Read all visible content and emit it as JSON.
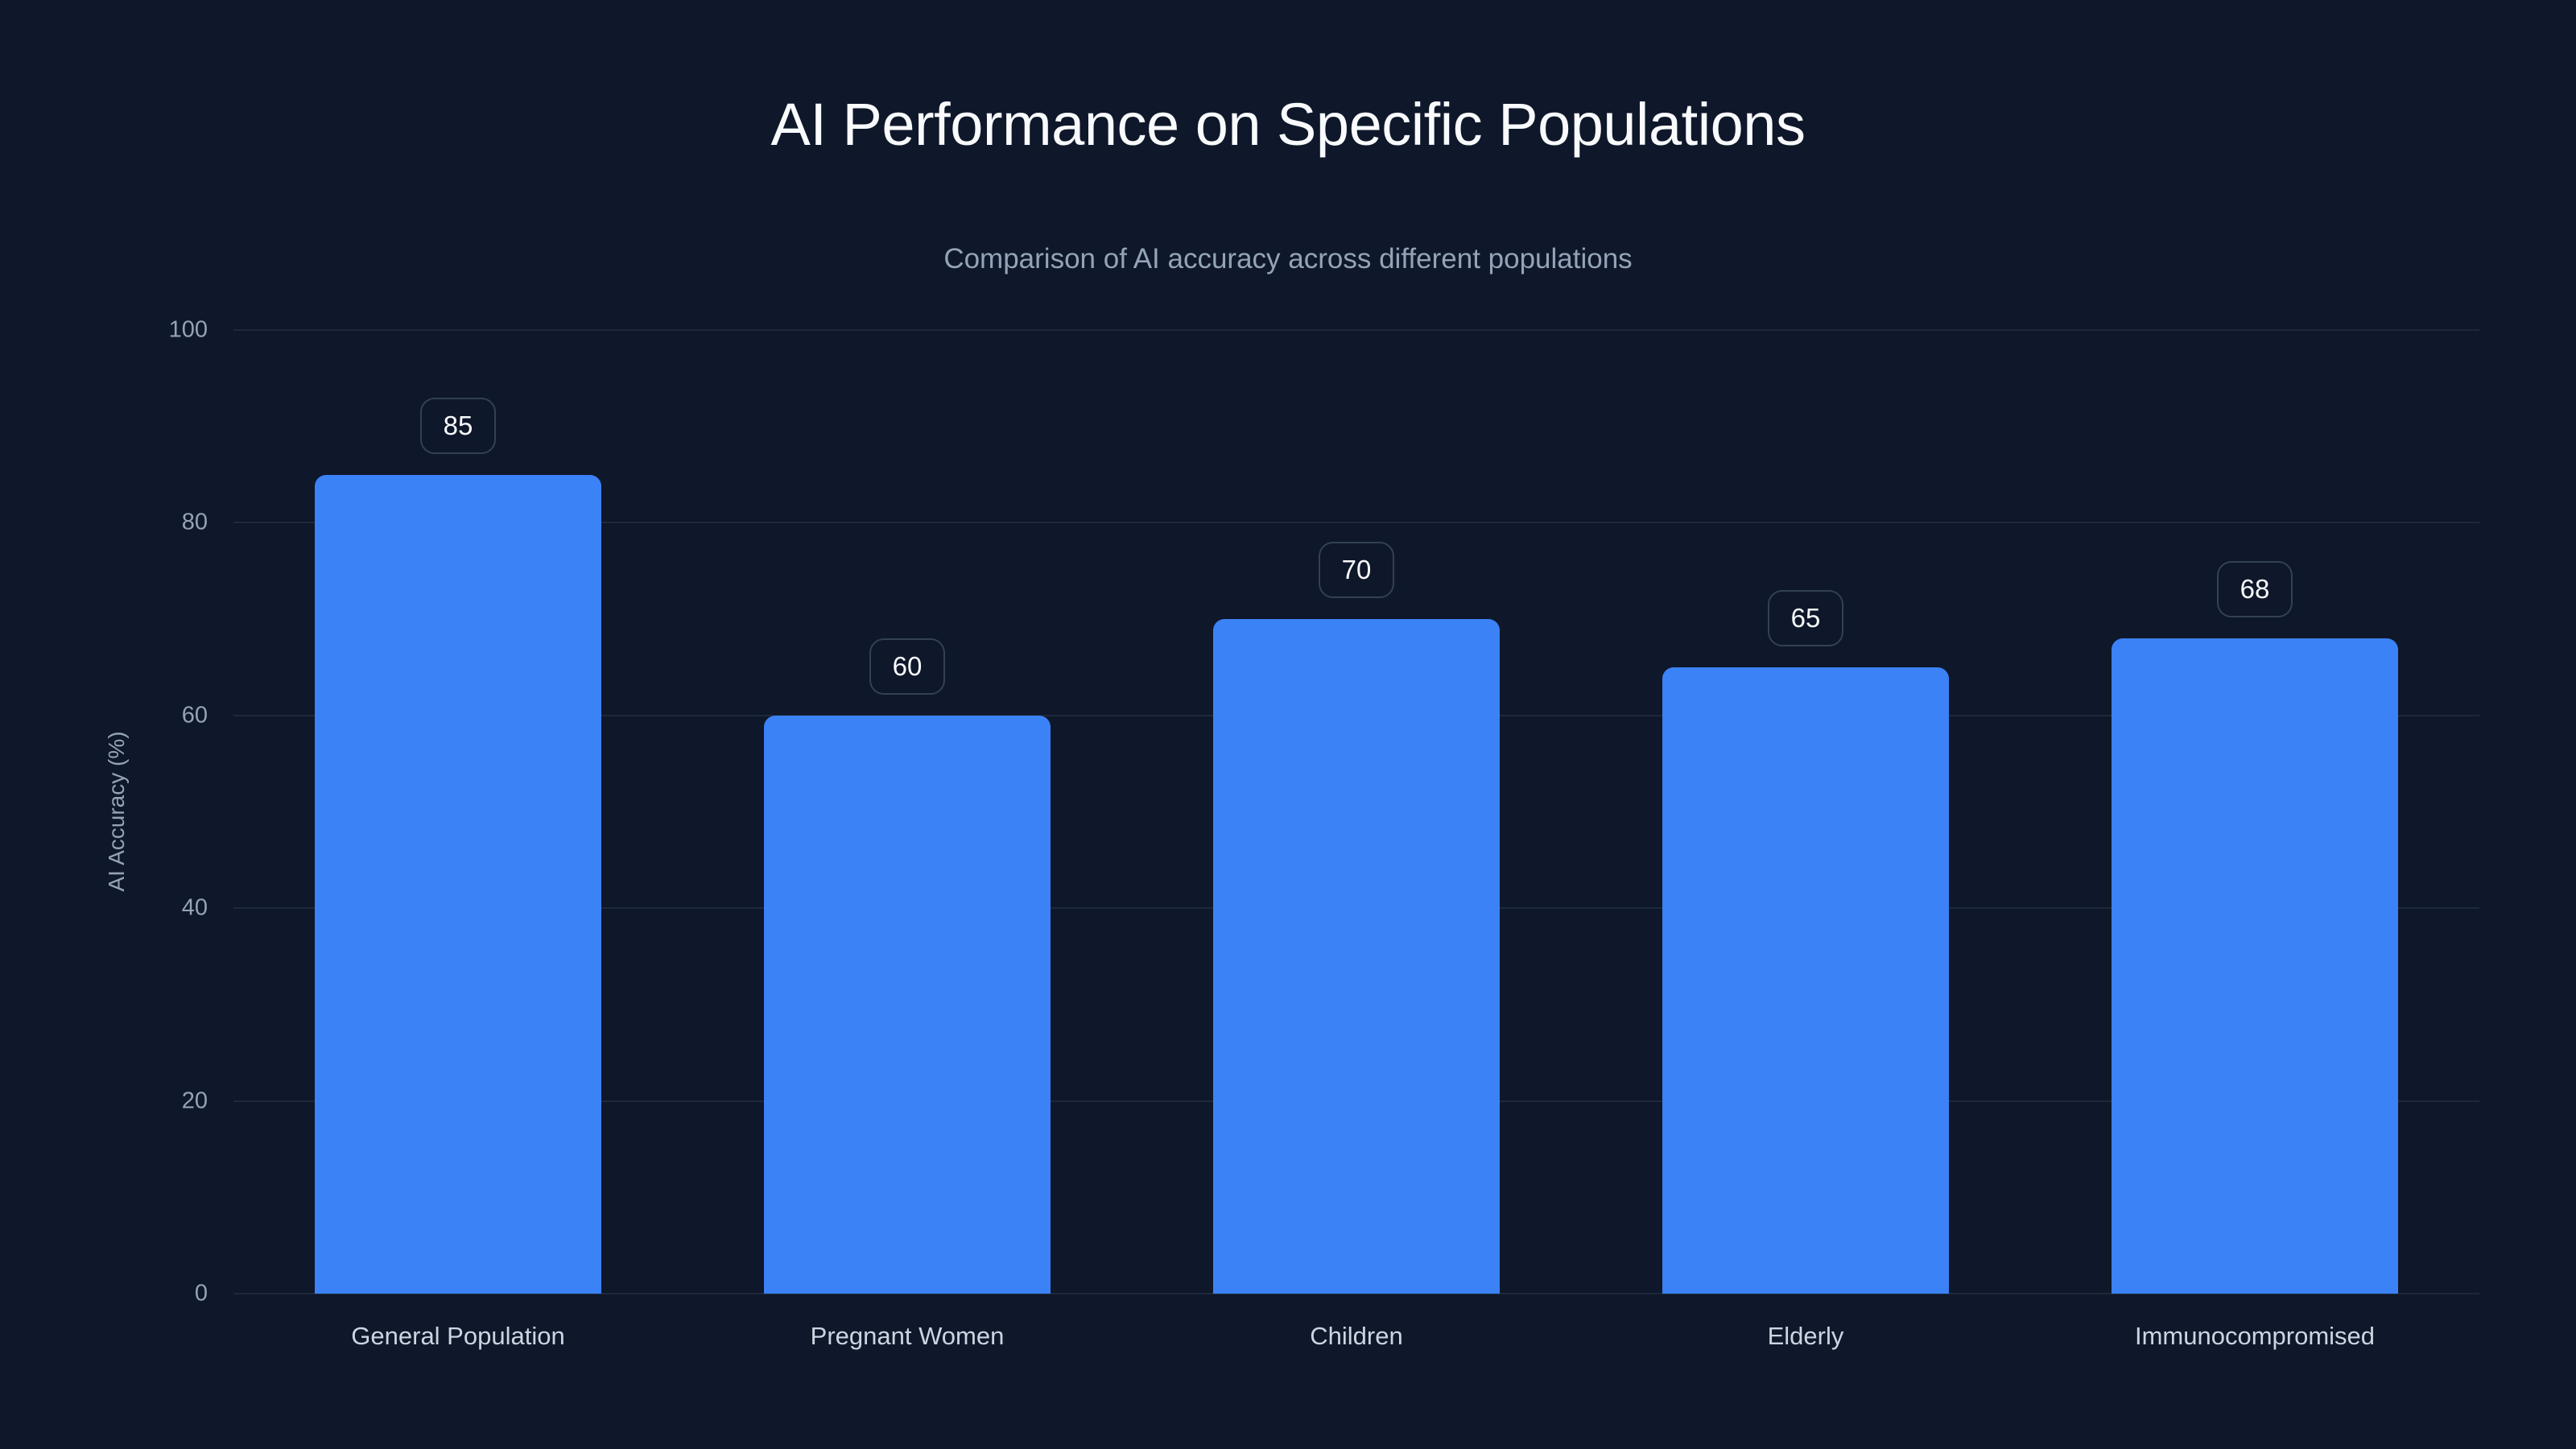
{
  "chart_data": {
    "type": "bar",
    "title": "AI Performance on Specific Populations",
    "subtitle": "Comparison of AI accuracy across different populations",
    "xlabel": "",
    "ylabel": "AI Accuracy (%)",
    "categories": [
      "General Population",
      "Pregnant Women",
      "Children",
      "Elderly",
      "Immunocompromised"
    ],
    "values": [
      85,
      60,
      70,
      65,
      68
    ],
    "ylim": [
      0,
      100
    ],
    "yticks": [
      0,
      20,
      40,
      60,
      80,
      100
    ],
    "grid": true,
    "legend": null,
    "bar_color": "#3b82f6",
    "data_labels": [
      "85",
      "60",
      "70",
      "65",
      "68"
    ]
  },
  "colors": {
    "background": "#0f172a",
    "bar": "#3b82f6",
    "grid": "#1e293b",
    "label_border": "#334155",
    "title": "#f8fafc",
    "muted": "#94a3b8"
  }
}
